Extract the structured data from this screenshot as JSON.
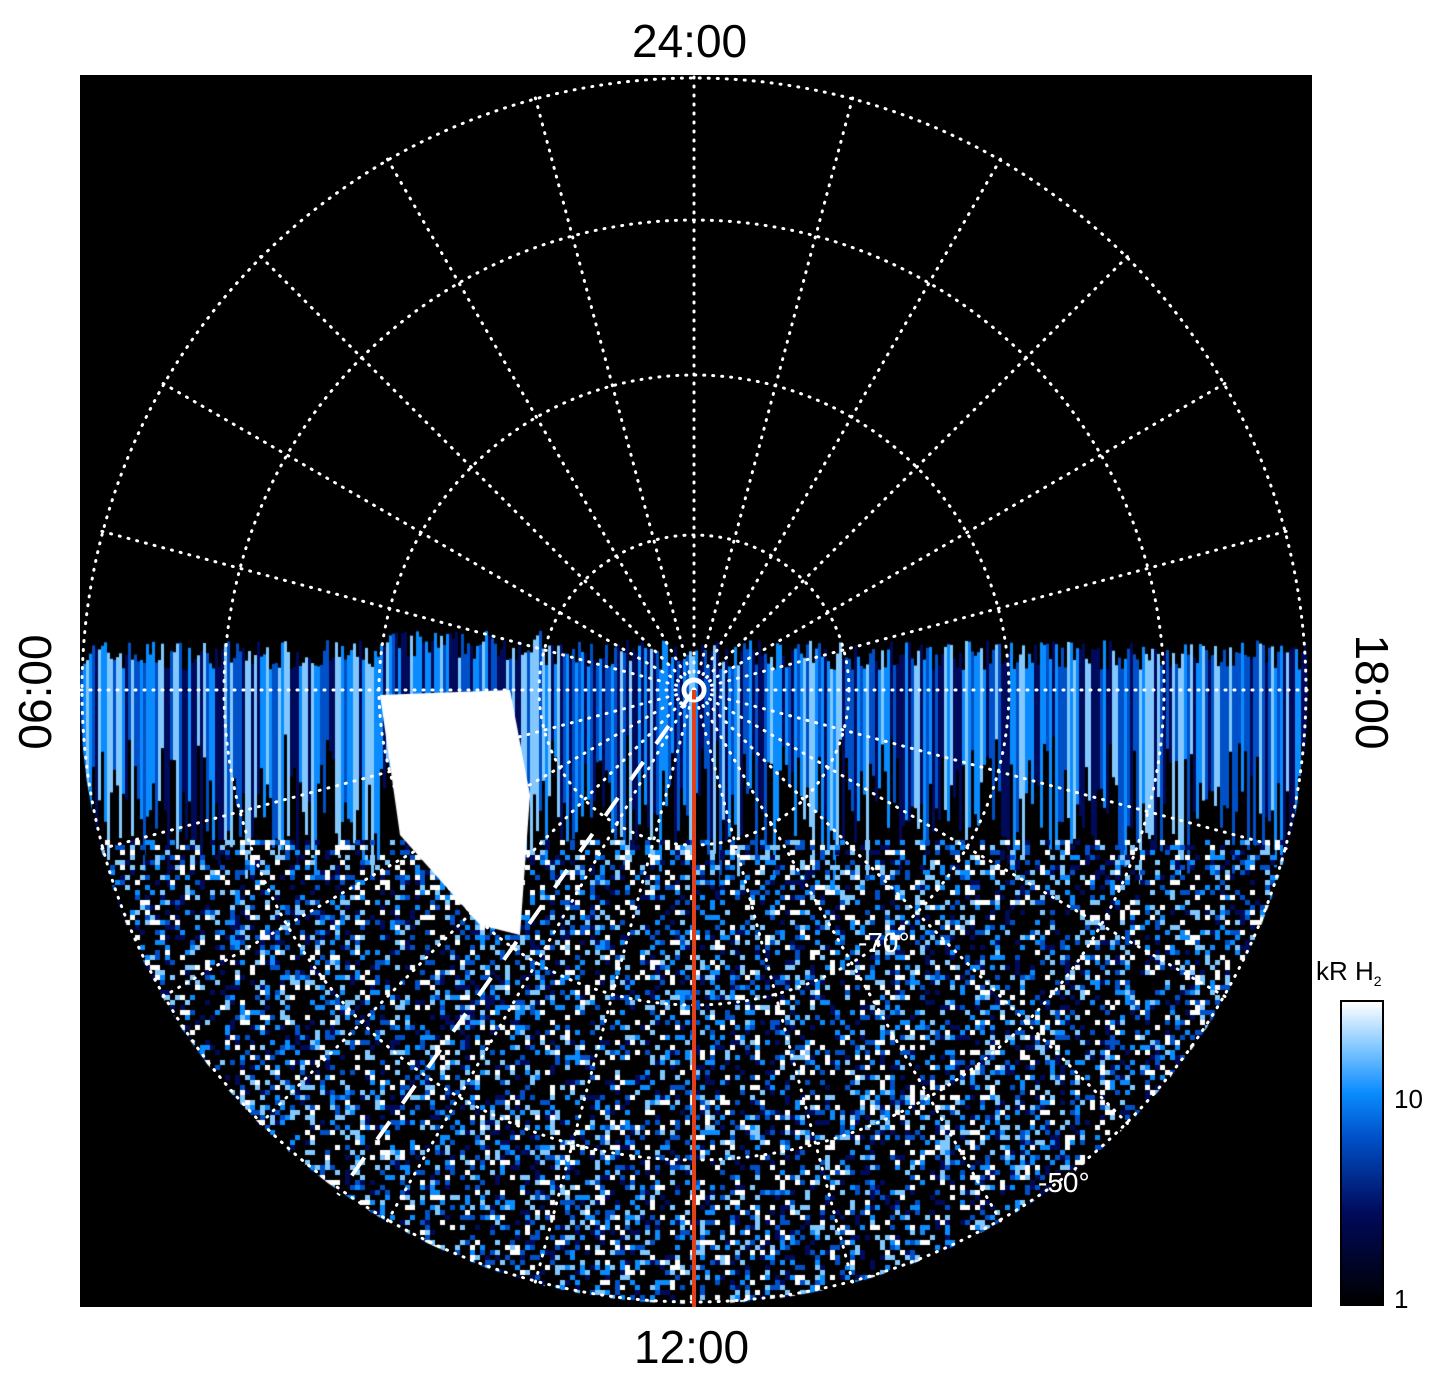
{
  "chart_data": {
    "type": "heatmap",
    "projection": "polar",
    "local_time_labels": {
      "top": "24:00",
      "left": "06:00",
      "right": "18:00",
      "bottom": "12:00"
    },
    "latitude_labels": [
      "-70°",
      "-50°"
    ],
    "latitude_rings": [
      -80,
      -70,
      -60,
      -50
    ],
    "meridian_spacing_hours": 1,
    "grid": true,
    "colorbar": {
      "title": "kR H",
      "title_subscript": "2",
      "scale": "log",
      "range": [
        1,
        30
      ],
      "tick_labels": [
        "1",
        "10"
      ],
      "colors": [
        "#000000",
        "#000a5a",
        "#0050c8",
        "#0a8cff",
        "#82c8ff",
        "#ffffff"
      ]
    },
    "overlays": {
      "meridian_line_color": "#e0401a",
      "dashed_line_color": "#ffffff"
    }
  }
}
